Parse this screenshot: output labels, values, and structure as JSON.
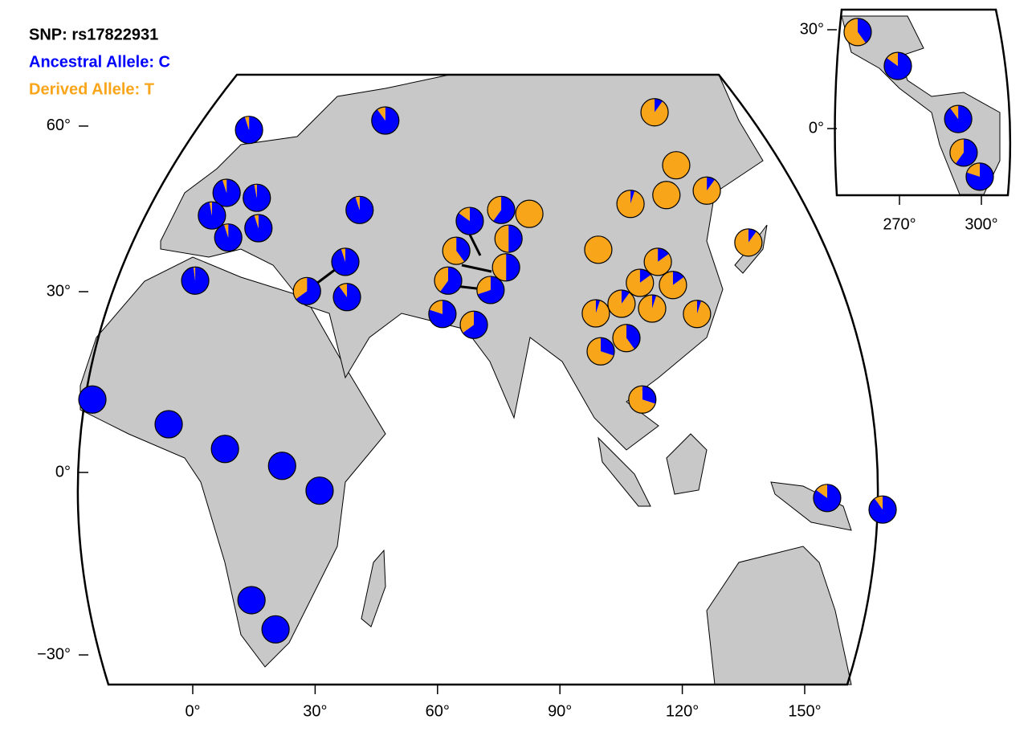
{
  "legend": {
    "title": "SNP: rs17822931",
    "ancestral": "Ancestral Allele: C",
    "derived": "Derived Allele: T",
    "ancestral_color": "#0000ff",
    "derived_color": "#f9a51a"
  },
  "main_map": {
    "lat_ticks": [
      {
        "value": 60,
        "label": "60°"
      },
      {
        "value": 30,
        "label": "30°"
      },
      {
        "value": 0,
        "label": "0°"
      },
      {
        "value": -30,
        "label": "−30°"
      }
    ],
    "lon_ticks": [
      {
        "value": 0,
        "label": "0°"
      },
      {
        "value": 30,
        "label": "30°"
      },
      {
        "value": 60,
        "label": "60°"
      },
      {
        "value": 90,
        "label": "90°"
      },
      {
        "value": 120,
        "label": "120°"
      },
      {
        "value": 150,
        "label": "150°"
      }
    ],
    "populations": [
      {
        "lon": 13.8,
        "lat": 59.3,
        "derived": 0.05
      },
      {
        "lon": 47.2,
        "lat": 61.0,
        "derived": 0.1
      },
      {
        "lon": 8.3,
        "lat": 47.9,
        "derived": 0.05
      },
      {
        "lon": 15.7,
        "lat": 47.0,
        "derived": 0.03
      },
      {
        "lon": 4.7,
        "lat": 43.8,
        "derived": 0.03
      },
      {
        "lon": 8.7,
        "lat": 39.8,
        "derived": 0.05
      },
      {
        "lon": 16.1,
        "lat": 41.5,
        "derived": 0.05
      },
      {
        "lon": 40.9,
        "lat": 44.8,
        "derived": 0.05
      },
      {
        "lon": 0.6,
        "lat": 32.0,
        "derived": 0.02
      },
      {
        "lon": 37.4,
        "lat": 35.4,
        "derived": 0.05
      },
      {
        "lon": 28.0,
        "lat": 30.1,
        "derived": 0.35
      },
      {
        "lon": 37.8,
        "lat": 29.1,
        "derived": 0.1
      },
      {
        "lon": -24.6,
        "lat": 12.1,
        "derived": 0
      },
      {
        "lon": -5.9,
        "lat": 8.0,
        "derived": 0
      },
      {
        "lon": 7.9,
        "lat": 3.9,
        "derived": 0
      },
      {
        "lon": 21.9,
        "lat": 1.1,
        "derived": 0
      },
      {
        "lon": 31.1,
        "lat": -3.0,
        "derived": 0
      },
      {
        "lon": 14.4,
        "lat": -21.0,
        "derived": 0
      },
      {
        "lon": 20.3,
        "lat": -25.8,
        "derived": 0
      },
      {
        "lon": 67.9,
        "lat": 42.8,
        "derived": 0.15
      },
      {
        "lon": 64.6,
        "lat": 37.4,
        "derived": 0.6
      },
      {
        "lon": 75.6,
        "lat": 44.8,
        "derived": 0.4
      },
      {
        "lon": 82.5,
        "lat": 44.1,
        "derived": 1
      },
      {
        "lon": 77.4,
        "lat": 39.6,
        "derived": 0.5
      },
      {
        "lon": 76.8,
        "lat": 34.4,
        "derived": 0.5
      },
      {
        "lon": 62.6,
        "lat": 32.0,
        "derived": 0.4
      },
      {
        "lon": 73.0,
        "lat": 30.3,
        "derived": 0.3
      },
      {
        "lon": 61.2,
        "lat": 26.3,
        "derived": 0.2
      },
      {
        "lon": 68.9,
        "lat": 24.5,
        "derived": 0.35
      },
      {
        "lon": 113.2,
        "lat": 62.5,
        "derived": 0.9
      },
      {
        "lon": 118.5,
        "lat": 52.9,
        "derived": 1
      },
      {
        "lon": 116.1,
        "lat": 47.5,
        "derived": 1
      },
      {
        "lon": 126.0,
        "lat": 48.3,
        "derived": 0.9
      },
      {
        "lon": 107.3,
        "lat": 45.9,
        "derived": 0.95
      },
      {
        "lon": 136.2,
        "lat": 38.9,
        "derived": 0.9
      },
      {
        "lon": 99.4,
        "lat": 37.6,
        "derived": 1
      },
      {
        "lon": 114.0,
        "lat": 35.4,
        "derived": 0.85
      },
      {
        "lon": 109.6,
        "lat": 31.6,
        "derived": 0.85
      },
      {
        "lon": 117.7,
        "lat": 31.2,
        "derived": 0.85
      },
      {
        "lon": 98.8,
        "lat": 26.4,
        "derived": 0.95
      },
      {
        "lon": 105.1,
        "lat": 28.0,
        "derived": 0.9
      },
      {
        "lon": 112.6,
        "lat": 27.2,
        "derived": 0.95
      },
      {
        "lon": 123.6,
        "lat": 26.3,
        "derived": 0.95
      },
      {
        "lon": 106.3,
        "lat": 22.3,
        "derived": 0.6
      },
      {
        "lon": 100.0,
        "lat": 20.1,
        "derived": 0.7
      },
      {
        "lon": 110.2,
        "lat": 12.1,
        "derived": 0.7
      },
      {
        "lon": 155.5,
        "lat": -4.2,
        "derived": 0.15
      },
      {
        "lon": 169.1,
        "lat": -6.1,
        "derived": 0.1
      }
    ]
  },
  "inset_map": {
    "lat_ticks": [
      {
        "value": 30,
        "label": "30°"
      },
      {
        "value": 0,
        "label": "0°"
      }
    ],
    "lon_ticks": [
      {
        "value": 270,
        "label": "270°"
      },
      {
        "value": 300,
        "label": "300°"
      }
    ],
    "populations": [
      {
        "lon": 254.7,
        "lat": 29.3,
        "derived": 0.6
      },
      {
        "lon": 269.4,
        "lat": 19.0,
        "derived": 0.15
      },
      {
        "lon": 291.5,
        "lat": 2.9,
        "derived": 0.1
      },
      {
        "lon": 293.5,
        "lat": -7.3,
        "derived": 0.4
      },
      {
        "lon": 299.4,
        "lat": -14.6,
        "derived": 0.2
      }
    ]
  }
}
